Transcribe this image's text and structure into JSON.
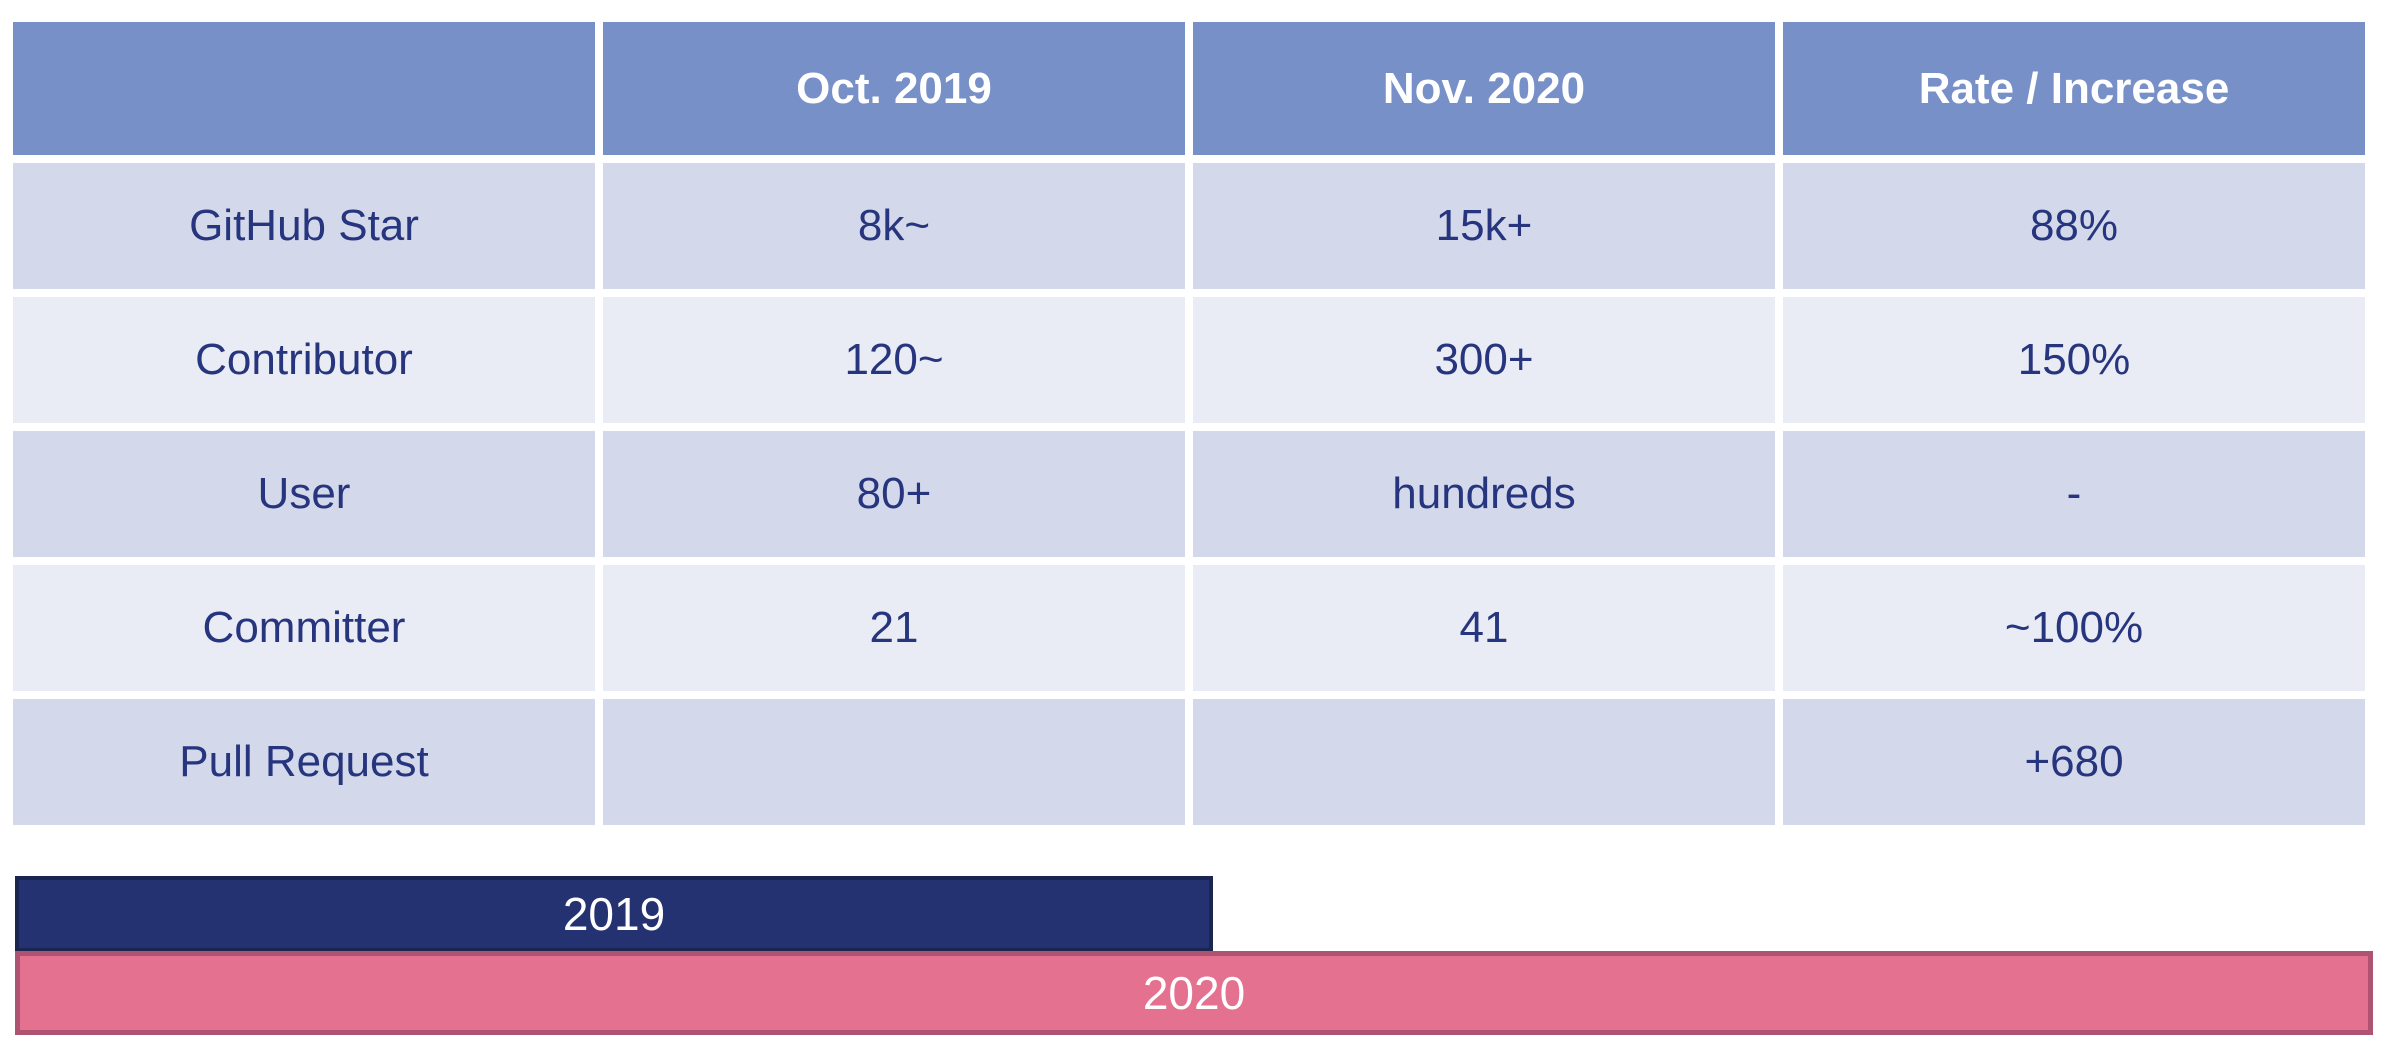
{
  "table": {
    "headers": [
      "",
      "Oct. 2019",
      "Nov. 2020",
      "Rate / Increase"
    ],
    "rows": [
      {
        "cells": [
          "GitHub Star",
          "8k~",
          "15k+",
          "88%"
        ]
      },
      {
        "cells": [
          "Contributor",
          "120~",
          "300+",
          "150%"
        ]
      },
      {
        "cells": [
          "User",
          "80+",
          "hundreds",
          "-"
        ]
      },
      {
        "cells": [
          "Committer",
          "21",
          "41",
          "~100%"
        ]
      },
      {
        "cells": [
          "Pull Request",
          "",
          "",
          "+680"
        ]
      }
    ]
  },
  "bars": {
    "bar_2019": {
      "label": "2019",
      "fill": "#253272",
      "border": "#1A2550",
      "relative_width": 0.51
    },
    "bar_2020": {
      "label": "2020",
      "fill": "#E3718F",
      "border": "#AE5372",
      "relative_width": 1.0
    }
  },
  "colors": {
    "header_bg": "#7790C8",
    "row_odd_bg": "#D3D9EA",
    "row_even_bg": "#E9ECF4",
    "table_text": "#26357E",
    "header_text": "#FFFFFF"
  },
  "chart_data": {
    "type": "table",
    "columns": [
      "",
      "Oct. 2019",
      "Nov. 2020",
      "Rate / Increase"
    ],
    "rows": [
      [
        "GitHub Star",
        "8k~",
        "15k+",
        "88%"
      ],
      [
        "Contributor",
        "120~",
        "300+",
        "150%"
      ],
      [
        "User",
        "80+",
        "hundreds",
        "-"
      ],
      [
        "Committer",
        "21",
        "41",
        "~100%"
      ],
      [
        "Pull Request",
        "",
        "",
        "+680"
      ]
    ],
    "timeline_bars": [
      {
        "label": "2019",
        "relative_width": 0.51
      },
      {
        "label": "2020",
        "relative_width": 1.0
      }
    ],
    "legend_position": "none",
    "grid": false
  }
}
